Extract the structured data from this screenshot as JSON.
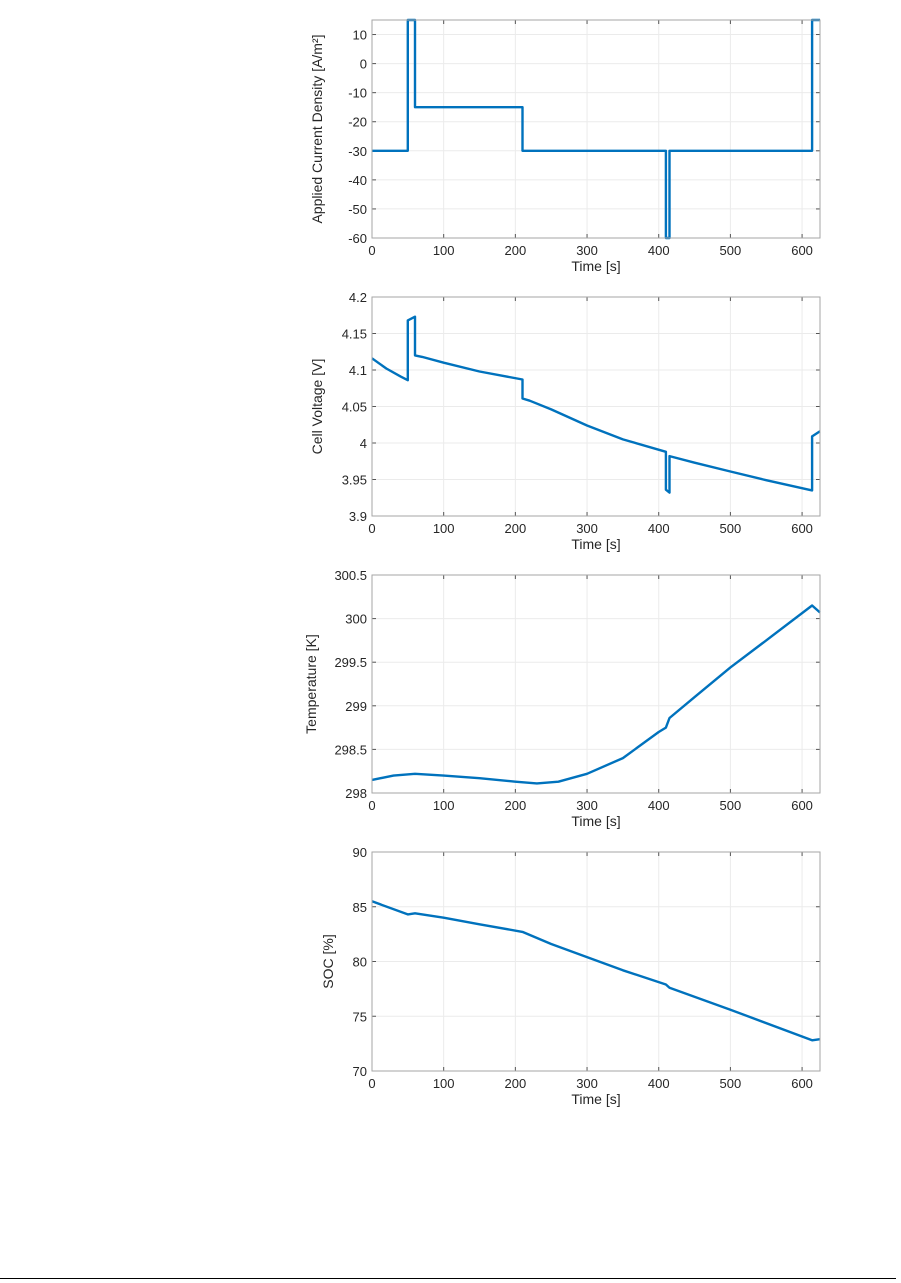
{
  "line_color": "#0072BD",
  "chart_data": [
    {
      "type": "line",
      "title": "",
      "xlabel": "Time [s]",
      "ylabel": "Applied Current Density [A/m²]",
      "xlim": [
        0,
        625
      ],
      "ylim": [
        -60,
        15
      ],
      "xticks": [
        0,
        100,
        200,
        300,
        400,
        500,
        600
      ],
      "yticks": [
        -60,
        -50,
        -40,
        -30,
        -20,
        -10,
        0,
        10
      ],
      "grid": true,
      "x": [
        0,
        50,
        50,
        60,
        60,
        210,
        210,
        410,
        410,
        415,
        415,
        614,
        614,
        625
      ],
      "y": [
        -30,
        -30,
        15,
        15,
        -15,
        -15,
        -30,
        -30,
        -60,
        -60,
        -30,
        -30,
        15,
        15
      ]
    },
    {
      "type": "line",
      "title": "",
      "xlabel": "Time [s]",
      "ylabel": "Cell Voltage [V]",
      "xlim": [
        0,
        625
      ],
      "ylim": [
        3.9,
        4.2
      ],
      "xticks": [
        0,
        100,
        200,
        300,
        400,
        500,
        600
      ],
      "yticks": [
        3.9,
        3.95,
        4,
        4.05,
        4.1,
        4.15,
        4.2
      ],
      "ytick_labels": [
        "3.9",
        "3.95",
        "4",
        "4.05",
        "4.1",
        "4.15",
        "4.2"
      ],
      "grid": true,
      "x": [
        0,
        20,
        40,
        50,
        50,
        60,
        60,
        70,
        100,
        150,
        210,
        210,
        220,
        250,
        300,
        350,
        410,
        410,
        415,
        415,
        450,
        500,
        550,
        614,
        614,
        625
      ],
      "y": [
        4.116,
        4.102,
        4.091,
        4.086,
        4.168,
        4.173,
        4.12,
        4.118,
        4.11,
        4.098,
        4.087,
        4.061,
        4.058,
        4.046,
        4.024,
        4.005,
        3.988,
        3.936,
        3.932,
        3.982,
        3.973,
        3.961,
        3.949,
        3.935,
        4.009,
        4.016
      ]
    },
    {
      "type": "line",
      "title": "",
      "xlabel": "Time [s]",
      "ylabel": "Temperature [K]",
      "xlim": [
        0,
        625
      ],
      "ylim": [
        298,
        300.5
      ],
      "xticks": [
        0,
        100,
        200,
        300,
        400,
        500,
        600
      ],
      "yticks": [
        298,
        298.5,
        299,
        299.5,
        300,
        300.5
      ],
      "ytick_labels": [
        "298",
        "298.5",
        "299",
        "299.5",
        "300",
        "300.5"
      ],
      "grid": true,
      "x": [
        0,
        30,
        60,
        100,
        150,
        200,
        230,
        260,
        300,
        350,
        400,
        410,
        415,
        450,
        500,
        550,
        614,
        625
      ],
      "y": [
        298.15,
        298.2,
        298.22,
        298.2,
        298.17,
        298.13,
        298.11,
        298.13,
        298.22,
        298.4,
        298.7,
        298.75,
        298.86,
        299.1,
        299.44,
        299.75,
        300.15,
        300.07
      ]
    },
    {
      "type": "line",
      "title": "",
      "xlabel": "Time [s]",
      "ylabel": "SOC [%]",
      "xlim": [
        0,
        625
      ],
      "ylim": [
        70,
        90
      ],
      "xticks": [
        0,
        100,
        200,
        300,
        400,
        500,
        600
      ],
      "yticks": [
        70,
        75,
        80,
        85,
        90
      ],
      "grid": true,
      "x": [
        0,
        50,
        60,
        100,
        150,
        210,
        250,
        300,
        350,
        410,
        415,
        500,
        614,
        625
      ],
      "y": [
        85.5,
        84.3,
        84.4,
        84,
        83.4,
        82.7,
        81.6,
        80.4,
        79.2,
        77.9,
        77.6,
        75.6,
        72.8,
        72.9
      ]
    }
  ]
}
